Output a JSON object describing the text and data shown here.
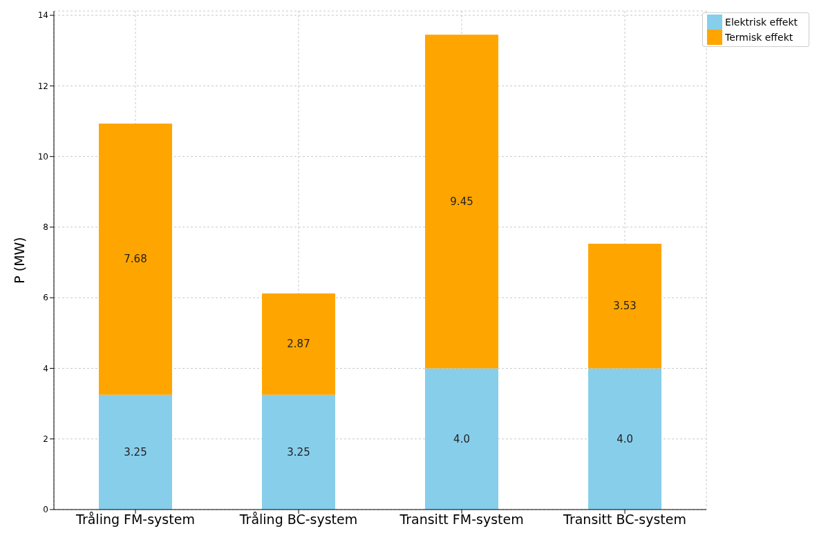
{
  "chart_data": {
    "type": "bar",
    "stacked": true,
    "ylabel": "P (MW)",
    "categories": [
      "Tråling FM-system",
      "Tråling BC-system",
      "Transitt FM-system",
      "Transitt BC-system"
    ],
    "series": [
      {
        "name": "Elektrisk effekt",
        "color": "#87ceeb",
        "values": [
          3.25,
          3.25,
          4.0,
          4.0
        ],
        "value_labels": [
          "3.25",
          "3.25",
          "4.0",
          "4.0"
        ]
      },
      {
        "name": "Termisk effekt",
        "color": "#ffa500",
        "values": [
          7.68,
          2.87,
          9.45,
          3.53
        ],
        "value_labels": [
          "7.68",
          "2.87",
          "9.45",
          "3.53"
        ]
      }
    ],
    "ylim": [
      0,
      14.12
    ],
    "yticks": [
      0,
      2,
      4,
      6,
      8,
      10,
      12,
      14
    ],
    "grid": true,
    "legend": "top right"
  }
}
